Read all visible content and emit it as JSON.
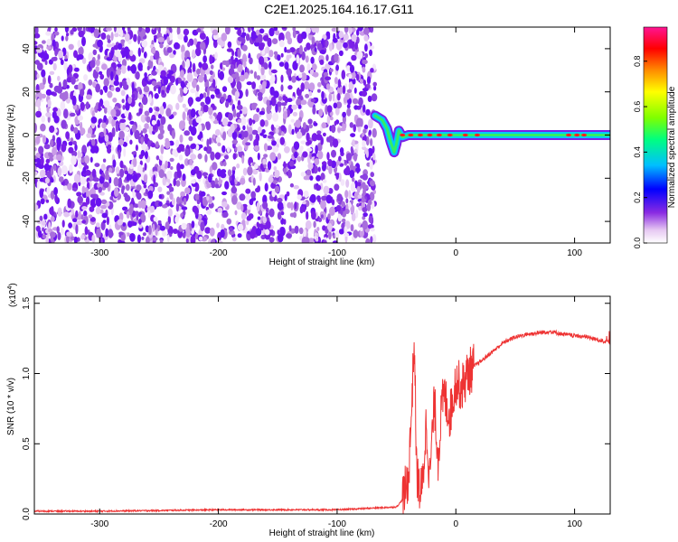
{
  "title": "C2E1.2025.164.16.17.G11",
  "chart_data": [
    {
      "type": "heatmap",
      "xlabel": "Height of straight line (km)",
      "ylabel": "Frequency (Hz)",
      "xlim": [
        -355,
        130
      ],
      "ylim": [
        -50,
        50
      ],
      "xticks": [
        -300,
        -200,
        -100,
        0,
        100
      ],
      "yticks": [
        -40,
        -20,
        0,
        20,
        40
      ],
      "noise_region_x": [
        -355,
        -68
      ],
      "signal_trace": {
        "x": [
          -68,
          -62,
          -58,
          -55,
          -52,
          -50,
          -48,
          -45,
          -40,
          -30,
          -20,
          -10,
          0,
          20,
          40,
          60,
          80,
          100,
          120,
          130
        ],
        "y": [
          9,
          7,
          3,
          -3,
          -8,
          -4,
          2,
          -1,
          0,
          0,
          0,
          0,
          0,
          0,
          0,
          0,
          0,
          0,
          0,
          0
        ]
      },
      "colorbar": {
        "label": "Normalized spectral amplitude",
        "range": [
          0,
          0.95
        ],
        "ticks": [
          "0.0",
          "0.2",
          "0.4",
          "0.6",
          "0.8"
        ],
        "colors": [
          "#ffffff",
          "#e6c8f2",
          "#8a2be2",
          "#0000ff",
          "#00bfff",
          "#00ff7f",
          "#7fff00",
          "#ffff00",
          "#ff8c00",
          "#ff0000",
          "#ff1493"
        ]
      }
    },
    {
      "type": "line",
      "xlabel": "Height of straight line (km)",
      "ylabel": "SNR (10 * v/v)",
      "yscale_label": "(x10",
      "yscale_exp": "4",
      "yscale_close": ")",
      "xlim": [
        -355,
        130
      ],
      "ylim": [
        0,
        1.55
      ],
      "xticks": [
        -300,
        -200,
        -100,
        0,
        100
      ],
      "yticks": [
        "0.0",
        "0.5",
        "1.0",
        "1.5"
      ],
      "line_color": "#ee3333",
      "series": [
        {
          "x": [
            -355,
            -300,
            -200,
            -100,
            -50,
            -45,
            -40,
            -38,
            -35,
            -33,
            -30,
            -28,
            -25,
            -22,
            -20,
            -18,
            -15,
            -12,
            -10,
            -5,
            0,
            5,
            10,
            15,
            20,
            30,
            40,
            50,
            60,
            70,
            80,
            90,
            100,
            110,
            120,
            130
          ],
          "values": [
            0.02,
            0.02,
            0.03,
            0.03,
            0.05,
            0.1,
            0.25,
            0.6,
            1.25,
            0.3,
            0.15,
            0.2,
            0.65,
            0.25,
            0.55,
            0.8,
            0.4,
            0.75,
            0.85,
            0.7,
            0.95,
            0.9,
            1.0,
            1.05,
            1.08,
            1.15,
            1.22,
            1.26,
            1.28,
            1.29,
            1.3,
            1.28,
            1.27,
            1.26,
            1.24,
            1.22
          ]
        }
      ]
    }
  ]
}
